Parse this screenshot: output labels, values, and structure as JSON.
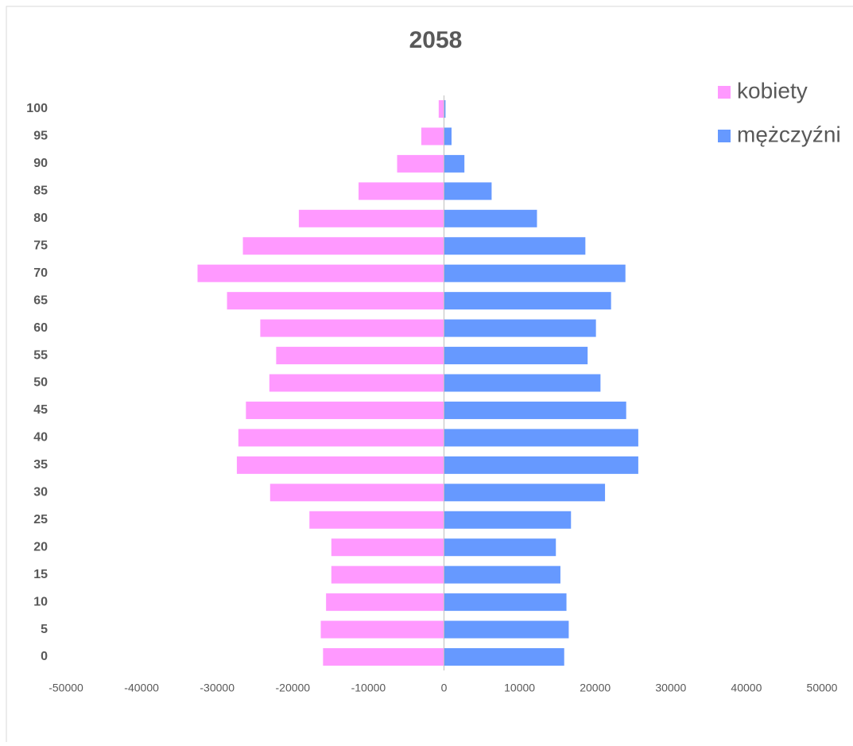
{
  "chart_data": {
    "type": "bar",
    "orientation": "horizontal",
    "stacked": true,
    "title": "2058",
    "categories": [
      "0",
      "5",
      "10",
      "15",
      "20",
      "25",
      "30",
      "35",
      "40",
      "45",
      "50",
      "55",
      "60",
      "65",
      "70",
      "75",
      "80",
      "85",
      "90",
      "95",
      "100"
    ],
    "series": [
      {
        "name": "kobiety",
        "color": "#ff99ff",
        "values": [
          -16000,
          -16300,
          -15600,
          -14900,
          -14900,
          -17800,
          -23000,
          -27400,
          -27200,
          -26200,
          -23100,
          -22200,
          -24300,
          -28700,
          -32600,
          -26600,
          -19200,
          -11300,
          -6200,
          -3000,
          -700
        ]
      },
      {
        "name": "mężczyźni",
        "color": "#6699ff",
        "values": [
          15900,
          16500,
          16200,
          15400,
          14800,
          16800,
          21300,
          25700,
          25700,
          24100,
          20700,
          19000,
          20100,
          22100,
          24000,
          18700,
          12300,
          6300,
          2700,
          1000,
          200
        ]
      }
    ],
    "xlim": [
      -50000,
      50000
    ],
    "xticks": [
      -50000,
      -40000,
      -30000,
      -20000,
      -10000,
      0,
      10000,
      20000,
      30000,
      40000,
      50000
    ],
    "legend": "top-right",
    "grid": false
  }
}
